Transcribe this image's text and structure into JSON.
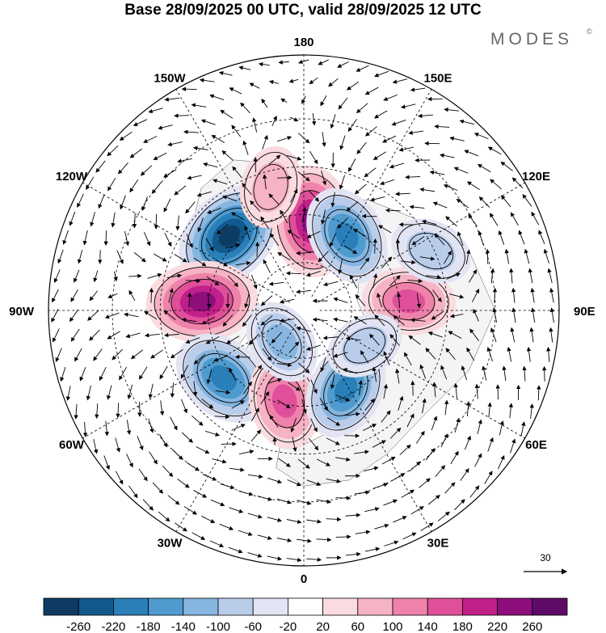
{
  "title": "Base 28/09/2025 00 UTC, valid 28/09/2025 12 UTC",
  "brand": "MODES",
  "brand_mark": "©",
  "map": {
    "projection": "north polar stereographic",
    "longitude_labels": [
      {
        "text": "180",
        "lon": 180
      },
      {
        "text": "150E",
        "lon": 150
      },
      {
        "text": "120E",
        "lon": 120
      },
      {
        "text": "90E",
        "lon": 90
      },
      {
        "text": "60E",
        "lon": 60
      },
      {
        "text": "30E",
        "lon": 30
      },
      {
        "text": "0",
        "lon": 0
      },
      {
        "text": "30W",
        "lon": -30
      },
      {
        "text": "60W",
        "lon": -60
      },
      {
        "text": "90W",
        "lon": -90
      },
      {
        "text": "120W",
        "lon": -120
      },
      {
        "text": "150W",
        "lon": -150
      }
    ],
    "latitude_circles": [
      30,
      45,
      60,
      75
    ],
    "anomaly_centers": [
      {
        "name": "neg-nw-pacific",
        "lon": -135,
        "colat": 33,
        "value": -260
      },
      {
        "name": "pos-bering",
        "lon": 175,
        "colat": 28,
        "value": 240
      },
      {
        "name": "neg-siberia-east",
        "lon": 150,
        "colat": 27,
        "value": -180
      },
      {
        "name": "pos-canada",
        "lon": -95,
        "colat": 32,
        "value": 240
      },
      {
        "name": "neg-north-atlantic-west",
        "lon": -50,
        "colat": 33,
        "value": -200
      },
      {
        "name": "pos-north-atlantic",
        "lon": -12,
        "colat": 29,
        "value": 160
      },
      {
        "name": "neg-scandinavia",
        "lon": 28,
        "colat": 28,
        "value": -180
      },
      {
        "name": "pos-central-asia",
        "lon": 95,
        "colat": 33,
        "value": 140
      },
      {
        "name": "neg-east-asia",
        "lon": 115,
        "colat": 44,
        "value": -80
      },
      {
        "name": "neg-greenland",
        "lon": -35,
        "colat": 12,
        "value": -100
      },
      {
        "name": "pos-alaska",
        "lon": -165,
        "colat": 40,
        "value": 80
      },
      {
        "name": "neg-russia",
        "lon": 60,
        "colat": 22,
        "value": -60
      }
    ],
    "reference_vector": {
      "label": "30"
    }
  },
  "colorbar": {
    "ticks": [
      "-260",
      "-220",
      "-180",
      "-140",
      "-100",
      "-60",
      "-20",
      "20",
      "60",
      "100",
      "140",
      "180",
      "220",
      "260"
    ],
    "colors": [
      "#0e3b63",
      "#125a8e",
      "#2a7fb8",
      "#4f9bcf",
      "#86b6df",
      "#b9cdea",
      "#e3e4f3",
      "#ffffff",
      "#f9dbe0",
      "#f5b3c4",
      "#ee82aa",
      "#e0509a",
      "#c1208a",
      "#8e0e7c",
      "#5e0b68"
    ]
  }
}
